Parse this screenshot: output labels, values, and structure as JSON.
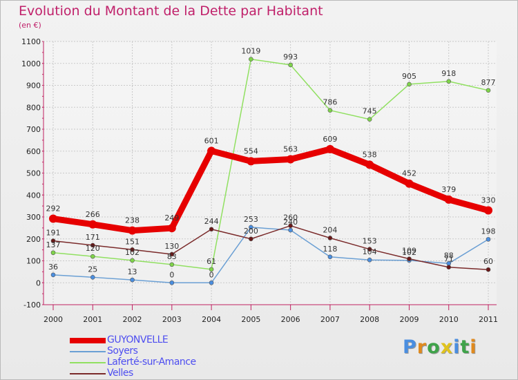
{
  "title": "Evolution du Montant de la Dette par Habitant",
  "subtitle": "(en €)",
  "logo": {
    "text": "Proxiti",
    "letter_colors": [
      "#4a8ee0",
      "#e08a1e",
      "#3fa34a",
      "#e0c31e",
      "#4a8ee0",
      "#3fa34a",
      "#e08a1e"
    ]
  },
  "chart_data": {
    "type": "line",
    "x": [
      "2000",
      "2001",
      "2002",
      "2003",
      "2004",
      "2005",
      "2006",
      "2007",
      "2008",
      "2009",
      "2010",
      "2011"
    ],
    "ylim": [
      -100,
      1100
    ],
    "yticks": [
      -100,
      0,
      100,
      200,
      300,
      400,
      500,
      600,
      700,
      800,
      900,
      1000,
      1100
    ],
    "grid": true,
    "legend_position": "bottom-left",
    "series": [
      {
        "name": "GUYONVELLE",
        "color": "#e60000",
        "width": 9,
        "values": [
          292,
          266,
          238,
          249,
          601,
          554,
          563,
          609,
          538,
          452,
          379,
          330
        ],
        "labels": [
          "292",
          "266",
          "238",
          "249",
          "601",
          "554",
          "563",
          "609",
          "538",
          "452",
          "379",
          "330"
        ]
      },
      {
        "name": "Soyers",
        "color": "#6a9fd4",
        "width": 1.5,
        "values": [
          36,
          25,
          13,
          0,
          0,
          253,
          240,
          118,
          104,
          102,
          88,
          198
        ],
        "labels": [
          "36",
          "25",
          "13",
          "0",
          "0",
          "253",
          "240",
          "118",
          "104",
          "102",
          "88",
          "198"
        ]
      },
      {
        "name": "Laferté-sur-Amance",
        "color": "#90e060",
        "width": 1.5,
        "values": [
          137,
          120,
          102,
          83,
          61,
          1019,
          993,
          786,
          745,
          905,
          918,
          877
        ],
        "labels": [
          "137",
          "120",
          "102",
          "83",
          "61",
          "1019",
          "993",
          "786",
          "745",
          "905",
          "918",
          "877"
        ]
      },
      {
        "name": "Velles",
        "color": "#7a2a2a",
        "width": 1.5,
        "values": [
          191,
          171,
          151,
          130,
          244,
          200,
          260,
          204,
          153,
          109,
          71,
          60
        ],
        "labels": [
          "191",
          "171",
          "151",
          "130",
          "244",
          "200",
          "260",
          "204",
          "153",
          "109",
          "71",
          "60"
        ]
      }
    ]
  }
}
